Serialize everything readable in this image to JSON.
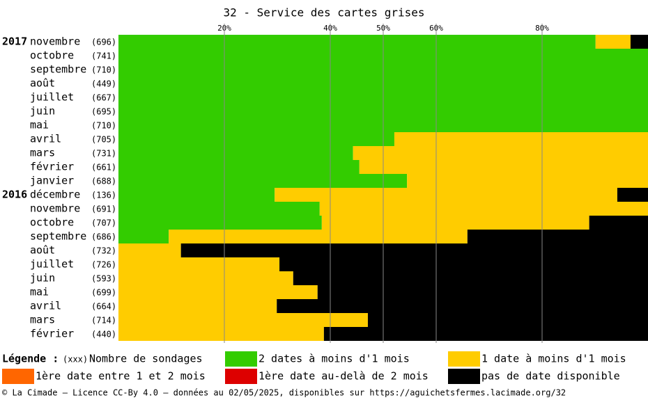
{
  "chart_data": {
    "type": "stacked-bar-horizontal",
    "title": "32 - Service des cartes grises",
    "years": [
      "2017",
      null,
      null,
      null,
      null,
      null,
      null,
      null,
      null,
      null,
      null,
      "2016",
      null,
      null,
      null,
      null,
      null,
      null,
      null,
      null,
      null,
      null
    ],
    "categories": [
      "novembre",
      "octobre",
      "septembre",
      "août",
      "juillet",
      "juin",
      "mai",
      "avril",
      "mars",
      "février",
      "janvier",
      "décembre",
      "novembre",
      "octobre",
      "septembre",
      "août",
      "juillet",
      "juin",
      "mai",
      "avril",
      "mars",
      "février"
    ],
    "row_counts": [
      "(696)",
      "(741)",
      "(710)",
      "(449)",
      "(667)",
      "(695)",
      "(710)",
      "(705)",
      "(731)",
      "(661)",
      "(688)",
      "(136)",
      "(691)",
      "(707)",
      "(686)",
      "(732)",
      "(726)",
      "(593)",
      "(699)",
      "(664)",
      "(714)",
      "(440)"
    ],
    "series": [
      {
        "name": "2 dates à moins d'1 mois",
        "color": "#33cc00",
        "values": [
          90.1,
          100,
          100,
          100,
          100,
          100,
          100,
          52.1,
          44.3,
          45.5,
          54.5,
          29.5,
          38.0,
          38.4,
          9.5,
          0,
          0,
          0,
          0,
          0,
          0,
          0
        ]
      },
      {
        "name": "1 date à moins d'1 mois",
        "color": "#ffcc00",
        "values": [
          6.6,
          0,
          0,
          0,
          0,
          0,
          0,
          47.9,
          55.7,
          54.5,
          45.5,
          64.7,
          62.0,
          50.5,
          56.4,
          11.8,
          30.4,
          33.0,
          37.6,
          29.9,
          47.1,
          38.8
        ]
      },
      {
        "name": "1ère date entre 1 et 2 mois",
        "color": "#ff6600",
        "values": [
          0,
          0,
          0,
          0,
          0,
          0,
          0,
          0,
          0,
          0,
          0,
          0,
          0,
          0,
          0,
          0,
          0,
          0,
          0,
          0,
          0,
          0
        ]
      },
      {
        "name": "1ère date au-delà de 2 mois",
        "color": "#dd0000",
        "values": [
          0,
          0,
          0,
          0,
          0,
          0,
          0,
          0,
          0,
          0,
          0,
          0,
          0,
          0,
          0,
          0,
          0,
          0,
          0,
          0,
          0,
          0
        ]
      },
      {
        "name": "pas de date disponible",
        "color": "#000000",
        "values": [
          3.3,
          0,
          0,
          0,
          0,
          0,
          0,
          0,
          0,
          0,
          0,
          5.8,
          0,
          11.1,
          34.1,
          88.2,
          69.6,
          67.0,
          62.4,
          70.1,
          52.9,
          61.2
        ]
      }
    ],
    "xlim": [
      0,
      100
    ],
    "xticks": [
      {
        "value": 20,
        "label": "20%"
      },
      {
        "value": 40,
        "label": "40%"
      },
      {
        "value": 50,
        "label": "50%"
      },
      {
        "value": 60,
        "label": "60%"
      },
      {
        "value": 80,
        "label": "80%"
      }
    ],
    "grid": true,
    "legend_title": "Légende :",
    "legend_count_marker": "(xxx)",
    "legend_count_label": "Nombre de sondages",
    "source": "© La Cimade — Licence CC-By 4.0 — données au 02/05/2025, disponibles sur https://aguichetsfermes.lacimade.org/32"
  }
}
